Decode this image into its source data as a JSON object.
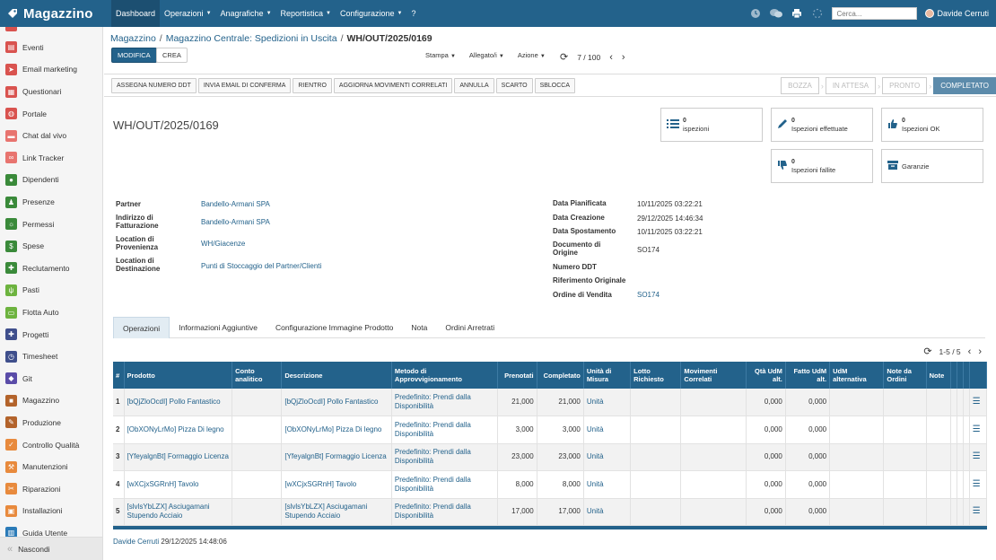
{
  "app": {
    "name": "Magazzino",
    "menu": [
      {
        "label": "Dashboard",
        "active": true,
        "dropdown": false
      },
      {
        "label": "Operazioni",
        "dropdown": true
      },
      {
        "label": "Anagrafiche",
        "dropdown": true
      },
      {
        "label": "Reportistica",
        "dropdown": true
      },
      {
        "label": "Configurazione",
        "dropdown": true
      },
      {
        "label": "?",
        "dropdown": false
      }
    ],
    "search_placeholder": "Cerca...",
    "user": "Davide Cerruti"
  },
  "sidebar": {
    "items": [
      {
        "label": "Eventi",
        "icon": "calendar-icon",
        "color": "#d9534f"
      },
      {
        "label": "Email marketing",
        "icon": "paper-plane-icon",
        "color": "#d9534f"
      },
      {
        "label": "Questionari",
        "icon": "clipboard-icon",
        "color": "#d9534f"
      },
      {
        "label": "Portale",
        "icon": "globe-icon",
        "color": "#d9534f"
      },
      {
        "label": "Chat dal vivo",
        "icon": "chat-icon",
        "color": "#e8746f"
      },
      {
        "label": "Link Tracker",
        "icon": "link-icon",
        "color": "#e8746f"
      },
      {
        "label": "Dipendenti",
        "icon": "people-icon",
        "color": "#3a8a3a"
      },
      {
        "label": "Presenze",
        "icon": "user-check-icon",
        "color": "#3a8a3a"
      },
      {
        "label": "Permessi",
        "icon": "sun-icon",
        "color": "#3a8a3a"
      },
      {
        "label": "Spese",
        "icon": "money-icon",
        "color": "#3a8a3a"
      },
      {
        "label": "Reclutamento",
        "icon": "puzzle-icon",
        "color": "#3a8a3a"
      },
      {
        "label": "Pasti",
        "icon": "cutlery-icon",
        "color": "#6db33f"
      },
      {
        "label": "Flotta Auto",
        "icon": "car-icon",
        "color": "#6db33f"
      },
      {
        "label": "Progetti",
        "icon": "puzzle-icon",
        "color": "#3f4f8c"
      },
      {
        "label": "Timesheet",
        "icon": "clock-icon",
        "color": "#3f4f8c"
      },
      {
        "label": "Git",
        "icon": "git-icon",
        "color": "#5a4ca8"
      },
      {
        "label": "Magazzino",
        "icon": "box-icon",
        "color": "#b3632b"
      },
      {
        "label": "Produzione",
        "icon": "wrench-icon",
        "color": "#b3632b"
      },
      {
        "label": "Controllo Qualità",
        "icon": "check-icon",
        "color": "#e88a3d"
      },
      {
        "label": "Manutenzioni",
        "icon": "hammer-icon",
        "color": "#e88a3d"
      },
      {
        "label": "Riparazioni",
        "icon": "screwdriver-icon",
        "color": "#e88a3d"
      },
      {
        "label": "Installazioni",
        "icon": "install-icon",
        "color": "#e88a3d"
      },
      {
        "label": "Guida Utente",
        "icon": "book-icon",
        "color": "#2b7bb8"
      }
    ],
    "hide_label": "Nascondi"
  },
  "breadcrumb": [
    "Magazzino",
    "Magazzino Centrale: Spedizioni in Uscita",
    "WH/OUT/2025/0169"
  ],
  "controls": {
    "edit_label": "MODIFICA",
    "create_label": "CREA",
    "dropdowns": [
      "Stampa",
      "Allegato/i",
      "Azione"
    ],
    "pager": "7 / 100"
  },
  "actions": [
    "ASSEGNA NUMERO DDT",
    "INVIA EMAIL DI CONFERMA",
    "RIENTRO",
    "AGGIORNA MOVIMENTI CORRELATI",
    "ANNULLA",
    "SCARTO",
    "SBLOCCA"
  ],
  "stages": [
    {
      "label": "BOZZA",
      "done": false
    },
    {
      "label": "IN ATTESA",
      "done": false
    },
    {
      "label": "PRONTO",
      "done": false
    },
    {
      "label": "COMPLETATO",
      "done": true
    }
  ],
  "record": {
    "title": "WH/OUT/2025/0169",
    "smart_buttons": [
      {
        "count": "0",
        "label": "ispezioni",
        "icon": "list-icon"
      },
      {
        "count": "0",
        "label": "Ispezioni effettuate",
        "icon": "pencil-icon"
      },
      {
        "count": "0",
        "label": "Ispezioni OK",
        "icon": "thumbs-up-icon"
      },
      {
        "count": "0",
        "label": "Ispezioni fallite",
        "icon": "thumbs-down-icon"
      },
      {
        "count": "",
        "label": "Garanzie",
        "icon": "archive-icon"
      }
    ],
    "left_fields": [
      {
        "label": "Partner",
        "value": "Bandello-Armani SPA"
      },
      {
        "label": "Indirizzo di Fatturazione",
        "value": "Bandello-Armani SPA"
      },
      {
        "label": "Location di Provenienza",
        "value": "WH/Giacenze"
      },
      {
        "label": "Location di Destinazione",
        "value": "Punti di Stoccaggio del Partner/Clienti"
      }
    ],
    "right_fields": [
      {
        "label": "Data Pianificata",
        "value": "10/11/2025 03:22:21"
      },
      {
        "label": "Data Creazione",
        "value": "29/12/2025 14:46:34"
      },
      {
        "label": "Data Spostamento",
        "value": "10/11/2025 03:22:21"
      },
      {
        "label": "Documento di Origine",
        "value": "SO174"
      },
      {
        "label": "Numero DDT",
        "value": ""
      },
      {
        "label": "Riferimento Originale",
        "value": ""
      },
      {
        "label": "Ordine di Vendita",
        "value": "SO174"
      }
    ]
  },
  "tabs": [
    "Operazioni",
    "Informazioni Aggiuntive",
    "Configurazione Immagine Prodotto",
    "Nota",
    "Ordini Arretrati"
  ],
  "lines_pager": "1-5 / 5",
  "lines": {
    "columns": [
      "#",
      "Prodotto",
      "Conto analitico",
      "Descrizione",
      "Metodo di Approvvigionamento",
      "Prenotati",
      "Completato",
      "Unità di Misura",
      "Lotto Richiesto",
      "Movimenti Correlati",
      "Qtà UdM alt.",
      "Fatto UdM alt.",
      "UdM alternativa",
      "Note da Ordini",
      "Note"
    ],
    "rows": [
      {
        "n": "1",
        "product": "[bQjZloOcdI] Pollo Fantastico",
        "account": "",
        "desc": "[bQjZloOcdI] Pollo Fantastico",
        "method": "Predefinito: Prendi dalla Disponibilità",
        "reserved": "21,000",
        "done": "21,000",
        "uom": "Unità",
        "alt_qty": "0,000",
        "alt_done": "0,000"
      },
      {
        "n": "2",
        "product": "[ObXONyLrMo] Pizza Di legno",
        "account": "",
        "desc": "[ObXONyLrMo] Pizza Di legno",
        "method": "Predefinito: Prendi dalla Disponibilità",
        "reserved": "3,000",
        "done": "3,000",
        "uom": "Unità",
        "alt_qty": "0,000",
        "alt_done": "0,000"
      },
      {
        "n": "3",
        "product": "[YfeyalgnBt] Formaggio Licenza",
        "account": "",
        "desc": "[YfeyalgnBt] Formaggio Licenza",
        "method": "Predefinito: Prendi dalla Disponibilità",
        "reserved": "23,000",
        "done": "23,000",
        "uom": "Unità",
        "alt_qty": "0,000",
        "alt_done": "0,000"
      },
      {
        "n": "4",
        "product": "[wXCjxSGRnH] Tavolo",
        "account": "",
        "desc": "[wXCjxSGRnH] Tavolo",
        "method": "Predefinito: Prendi dalla Disponibilità",
        "reserved": "8,000",
        "done": "8,000",
        "uom": "Unità",
        "alt_qty": "0,000",
        "alt_done": "0,000"
      },
      {
        "n": "5",
        "product": "[slvlsYbLZX] Asciugamani Stupendo Acciaio",
        "account": "",
        "desc": "[slvlsYbLZX] Asciugamani Stupendo Acciaio",
        "method": "Predefinito: Prendi dalla Disponibilità",
        "reserved": "17,000",
        "done": "17,000",
        "uom": "Unità",
        "alt_qty": "0,000",
        "alt_done": "0,000"
      }
    ]
  },
  "chatter": {
    "author": "Davide Cerruti",
    "date": "29/12/2025 14:48:06"
  },
  "colors": {
    "brand": "#23628b",
    "stage_done": "#5c8bab"
  }
}
